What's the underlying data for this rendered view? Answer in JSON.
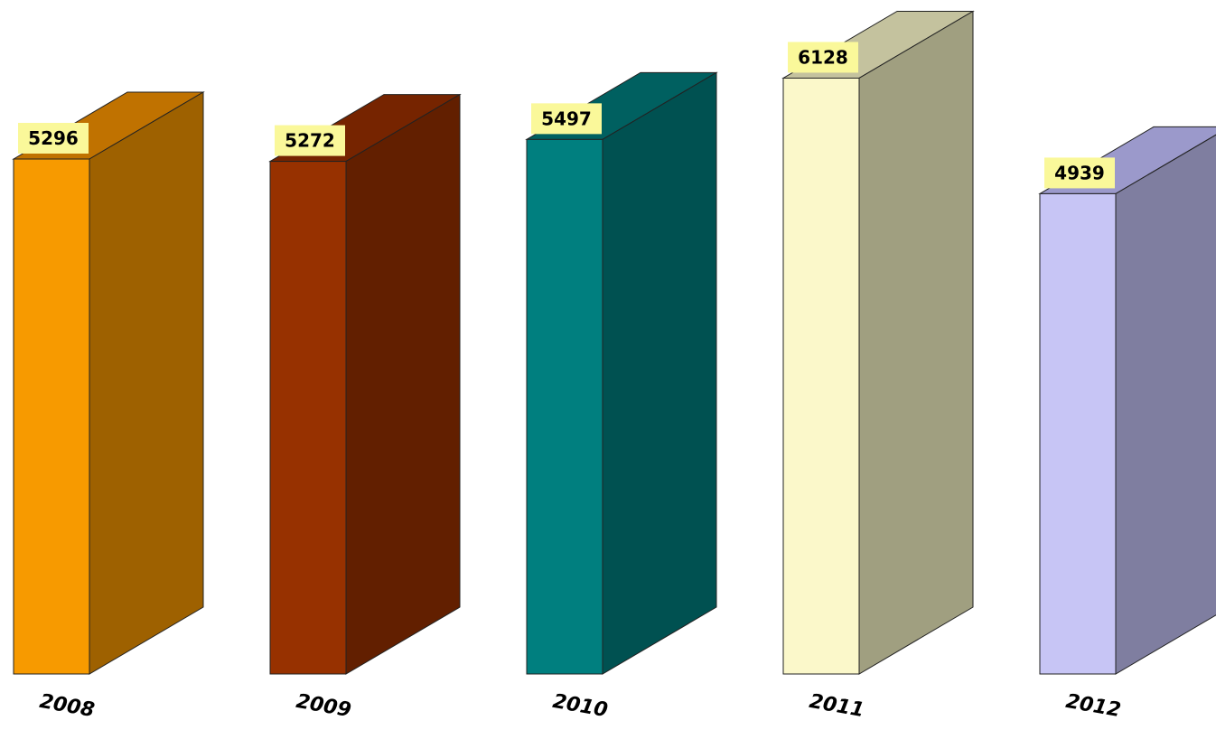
{
  "chart_data": {
    "type": "bar",
    "categories": [
      "2008",
      "2009",
      "2010",
      "2011",
      "2012"
    ],
    "values": [
      5296,
      5272,
      5497,
      6128,
      4939
    ],
    "title": "",
    "xlabel": "",
    "ylabel": "",
    "ylim": [
      0,
      6500
    ],
    "grid": false,
    "legend": "none",
    "style": "3d-columns",
    "colors": {
      "front": [
        "#F79A00",
        "#973100",
        "#007F7F",
        "#FBF8CA",
        "#C7C5F5"
      ],
      "side": [
        "#9E6100",
        "#621F00",
        "#005151",
        "#A09F80",
        "#7F7EA0"
      ],
      "top": [
        "#C07200",
        "#762400",
        "#006060",
        "#C4C29E",
        "#9B99CB"
      ],
      "label_background": "#FAF89A"
    }
  }
}
